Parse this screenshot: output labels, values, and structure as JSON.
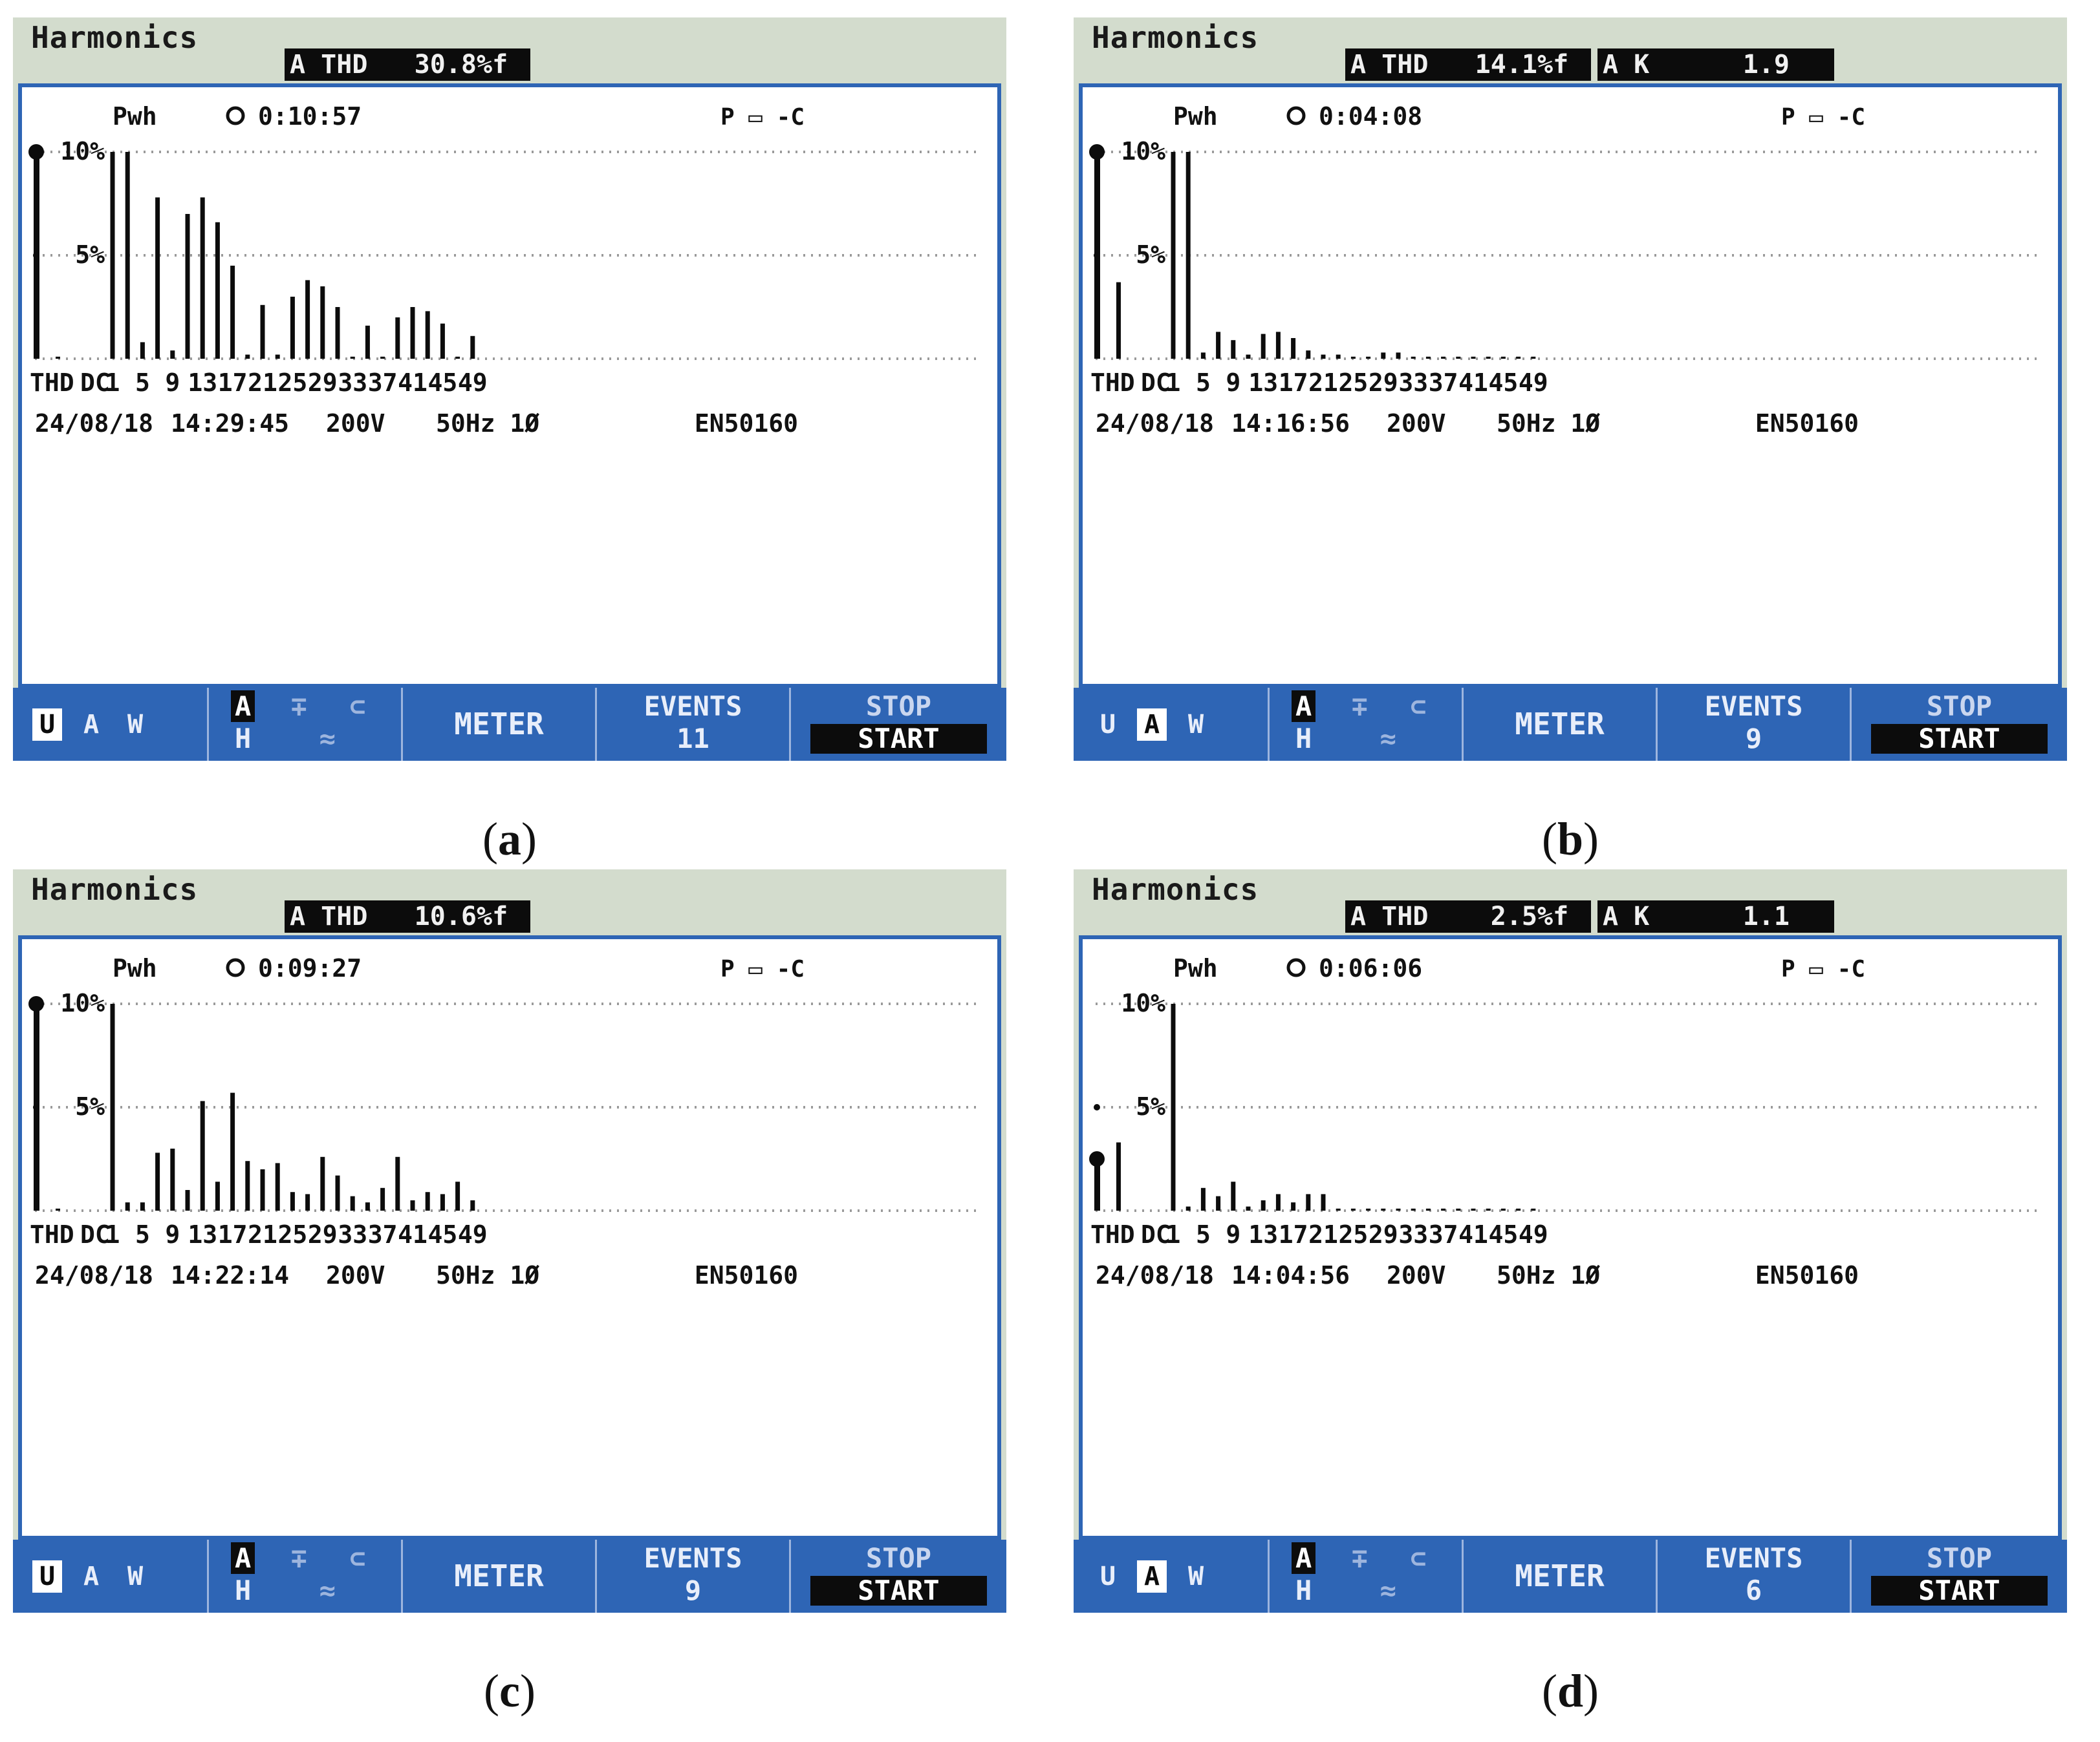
{
  "colors": {
    "screen_bg": "#d3dccd",
    "plot_bg": "#ffffff",
    "frame_blue": "#2e65b5",
    "bar": "#0c0c0c",
    "grid": "#9a9a9a"
  },
  "panels": [
    {
      "caption_letter": "a",
      "title": "Harmonics",
      "thd_readout": "A THD   30.8%f",
      "k_readout": "",
      "info": {
        "mode": "Pwh",
        "clock_icon": "clock-icon",
        "elapsed": "0:10:57",
        "status": "P ▭ -C"
      },
      "footer": {
        "date": "24/08/18",
        "time": "14:29:45",
        "voltage": "200V",
        "freq": "50Hz 1Ø",
        "standard": "EN50160"
      },
      "softkeys": {
        "uaw": [
          "U",
          "A",
          "W"
        ],
        "uaw_selected": "U",
        "mode_top": "A",
        "mode_bottom": "H",
        "meter": "METER",
        "events_label": "EVENTS",
        "events_count": "11",
        "stop": "STOP",
        "start": "START"
      }
    },
    {
      "caption_letter": "b",
      "title": "Harmonics",
      "thd_readout": "A THD   14.1%f",
      "k_readout": "A K      1.9",
      "info": {
        "mode": "Pwh",
        "clock_icon": "clock-icon",
        "elapsed": "0:04:08",
        "status": "P ▭ -C"
      },
      "footer": {
        "date": "24/08/18",
        "time": "14:16:56",
        "voltage": "200V",
        "freq": "50Hz 1Ø",
        "standard": "EN50160"
      },
      "softkeys": {
        "uaw": [
          "U",
          "A",
          "W"
        ],
        "uaw_selected": "A",
        "mode_top": "A",
        "mode_bottom": "H",
        "meter": "METER",
        "events_label": "EVENTS",
        "events_count": "9",
        "stop": "STOP",
        "start": "START"
      }
    },
    {
      "caption_letter": "c",
      "title": "Harmonics",
      "thd_readout": "A THD   10.6%f",
      "k_readout": "",
      "info": {
        "mode": "Pwh",
        "clock_icon": "clock-icon",
        "elapsed": "0:09:27",
        "status": "P ▭ -C"
      },
      "footer": {
        "date": "24/08/18",
        "time": "14:22:14",
        "voltage": "200V",
        "freq": "50Hz 1Ø",
        "standard": "EN50160"
      },
      "softkeys": {
        "uaw": [
          "U",
          "A",
          "W"
        ],
        "uaw_selected": "U",
        "mode_top": "A",
        "mode_bottom": "H",
        "meter": "METER",
        "events_label": "EVENTS",
        "events_count": "9",
        "stop": "STOP",
        "start": "START"
      }
    },
    {
      "caption_letter": "d",
      "title": "Harmonics",
      "thd_readout": "A THD    2.5%f",
      "k_readout": "A K      1.1",
      "info": {
        "mode": "Pwh",
        "clock_icon": "clock-icon",
        "elapsed": "0:06:06",
        "status": "P ▭ -C"
      },
      "footer": {
        "date": "24/08/18",
        "time": "14:04:56",
        "voltage": "200V",
        "freq": "50Hz 1Ø",
        "standard": "EN50160"
      },
      "softkeys": {
        "uaw": [
          "U",
          "A",
          "W"
        ],
        "uaw_selected": "A",
        "mode_top": "A",
        "mode_bottom": "H",
        "meter": "METER",
        "events_label": "EVENTS",
        "events_count": "6",
        "stop": "STOP",
        "start": "START"
      }
    }
  ],
  "chart_data": [
    {
      "type": "bar",
      "title": "Harmonics (a)",
      "ylabel": "%f",
      "ylim": [
        0,
        10
      ],
      "yticks": [
        "10%",
        "5%"
      ],
      "grid": true,
      "x_tick_labels": [
        "THD",
        "DC",
        "1",
        "5",
        "9",
        "13",
        "17",
        "21",
        "25",
        "29",
        "33",
        "37",
        "41",
        "45",
        "49"
      ],
      "thd": 10,
      "dc": 0.1,
      "harmonic_values": [
        10,
        10,
        0.8,
        7.8,
        0.4,
        7.0,
        7.8,
        6.6,
        4.5,
        0.2,
        2.6,
        0.2,
        3.0,
        3.8,
        3.5,
        2.5,
        0.1,
        1.6,
        0.1,
        2.0,
        2.5,
        2.3,
        1.7,
        0.1,
        1.1
      ]
    },
    {
      "type": "bar",
      "title": "Harmonics (b)",
      "ylabel": "%f",
      "ylim": [
        0,
        10
      ],
      "yticks": [
        "10%",
        "5%"
      ],
      "grid": true,
      "x_tick_labels": [
        "THD",
        "DC",
        "1",
        "5",
        "9",
        "13",
        "17",
        "21",
        "25",
        "29",
        "33",
        "37",
        "41",
        "45",
        "49"
      ],
      "thd": 10,
      "dc": 3.7,
      "harmonic_values": [
        10,
        10,
        0.3,
        1.3,
        0.9,
        0.2,
        1.2,
        1.3,
        1.0,
        0.4,
        0.2,
        0.2,
        0.1,
        0.1,
        0.3,
        0.3,
        0.1,
        0.1,
        0.1,
        0.1,
        0.1,
        0.1,
        0.1,
        0.1,
        0.1
      ]
    },
    {
      "type": "bar",
      "title": "Harmonics (c)",
      "ylabel": "%f",
      "ylim": [
        0,
        10
      ],
      "yticks": [
        "10%",
        "5%"
      ],
      "grid": true,
      "x_tick_labels": [
        "THD",
        "DC",
        "1",
        "5",
        "9",
        "13",
        "17",
        "21",
        "25",
        "29",
        "33",
        "37",
        "41",
        "45",
        "49"
      ],
      "thd": 10,
      "dc": 0.1,
      "harmonic_values": [
        10,
        0.4,
        0.4,
        2.8,
        3.0,
        1.0,
        5.3,
        1.4,
        5.7,
        2.4,
        2.0,
        2.3,
        0.9,
        0.8,
        2.6,
        1.7,
        0.7,
        0.4,
        1.1,
        2.6,
        0.5,
        0.9,
        0.8,
        1.4,
        0.5
      ]
    },
    {
      "type": "bar",
      "title": "Harmonics (d)",
      "ylabel": "%f",
      "ylim": [
        0,
        10
      ],
      "yticks": [
        "10%",
        "5%"
      ],
      "grid": true,
      "x_tick_labels": [
        "THD",
        "DC",
        "1",
        "5",
        "9",
        "13",
        "17",
        "21",
        "25",
        "29",
        "33",
        "37",
        "41",
        "45",
        "49"
      ],
      "thd": 2.5,
      "dc": 3.3,
      "harmonic_values": [
        10,
        0.2,
        1.1,
        0.7,
        1.4,
        0.2,
        0.5,
        0.8,
        0.4,
        0.8,
        0.8,
        0.1,
        0.1,
        0.1,
        0.1,
        0.1,
        0.1,
        0.1,
        0.1,
        0.1,
        0.1,
        0.1,
        0.1,
        0.1,
        0.1
      ]
    }
  ]
}
